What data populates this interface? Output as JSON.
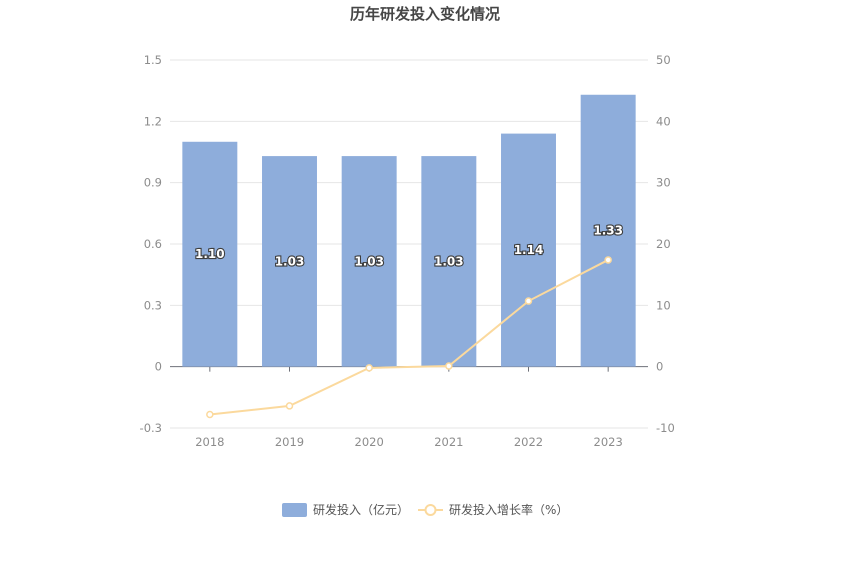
{
  "chart_data": {
    "type": "bar",
    "title": "历年研发投入变化情况",
    "categories": [
      "2018",
      "2019",
      "2020",
      "2021",
      "2022",
      "2023"
    ],
    "series": [
      {
        "name": "研发投入（亿元）",
        "type": "bar",
        "axis": "left",
        "values": [
          1.1,
          1.03,
          1.03,
          1.03,
          1.14,
          1.33
        ],
        "labels": [
          "1.10",
          "1.03",
          "1.03",
          "1.03",
          "1.14",
          "1.33"
        ],
        "color": "#8eaddb"
      },
      {
        "name": "研发投入增长率（%）",
        "type": "line",
        "axis": "right",
        "values": [
          -7.8,
          -6.4,
          -0.2,
          0.1,
          10.7,
          17.4
        ],
        "color": "#fbd99d"
      }
    ],
    "y_left": {
      "ylim": [
        -0.3,
        1.5
      ],
      "ticks": [
        "-0.3",
        "0",
        "0.3",
        "0.6",
        "0.9",
        "1.2",
        "1.5"
      ]
    },
    "y_right": {
      "ylim": [
        -10,
        50
      ],
      "ticks": [
        "-10",
        "0",
        "10",
        "20",
        "30",
        "40",
        "50"
      ]
    },
    "grid": true,
    "legend_position": "bottom"
  }
}
